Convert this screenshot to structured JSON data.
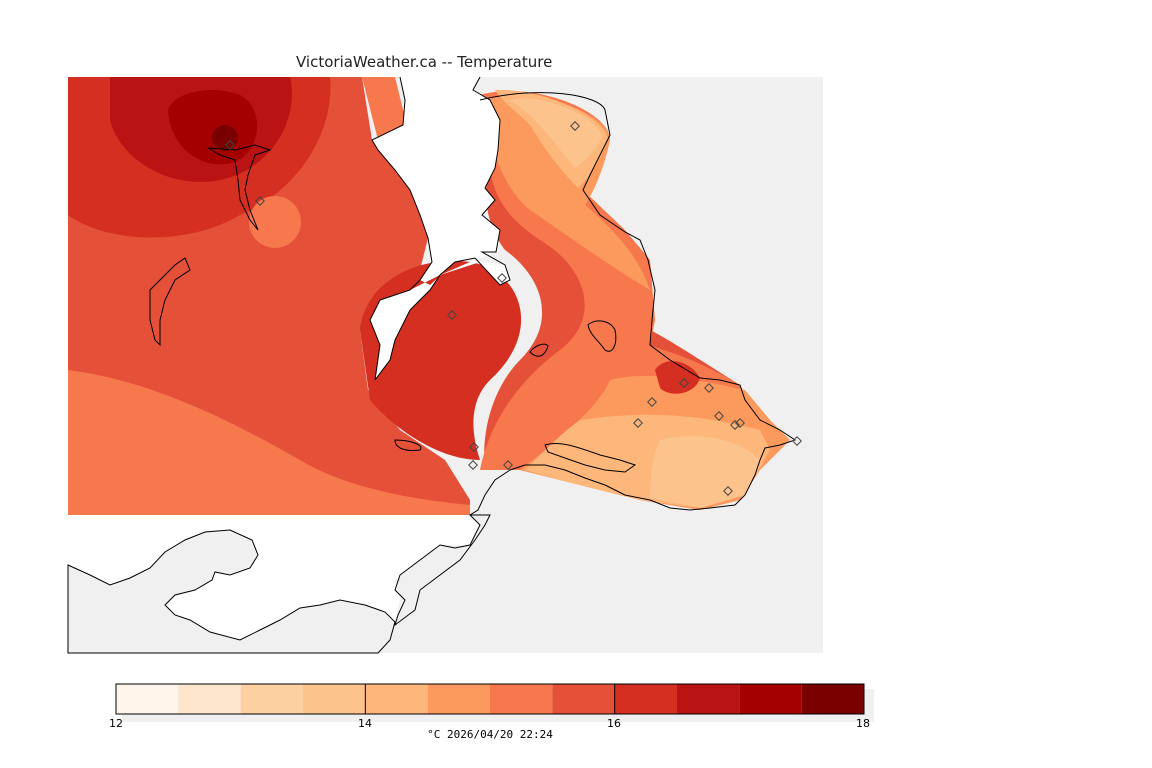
{
  "title": "VictoriaWeather.ca -- Temperature",
  "colorbar": {
    "ticks": [
      "12",
      "14",
      "16",
      "18"
    ],
    "unit": "°C",
    "timestamp": "2026/04/20 22:24",
    "min": 12,
    "max": 18,
    "bin_width": 0.5,
    "colors": [
      "#fff5eb",
      "#fee6ce",
      "#fdd0a2",
      "#fdc38d",
      "#fdb77a",
      "#fc9a5e",
      "#f6784c",
      "#e55039",
      "#d42f21",
      "#b91313",
      "#a50000",
      "#7a0000"
    ]
  },
  "palette": {
    "land_gray": "#f0f0f0",
    "water_white": "#ffffff",
    "coast": "#000000",
    "station_marker": "#444444"
  }
}
